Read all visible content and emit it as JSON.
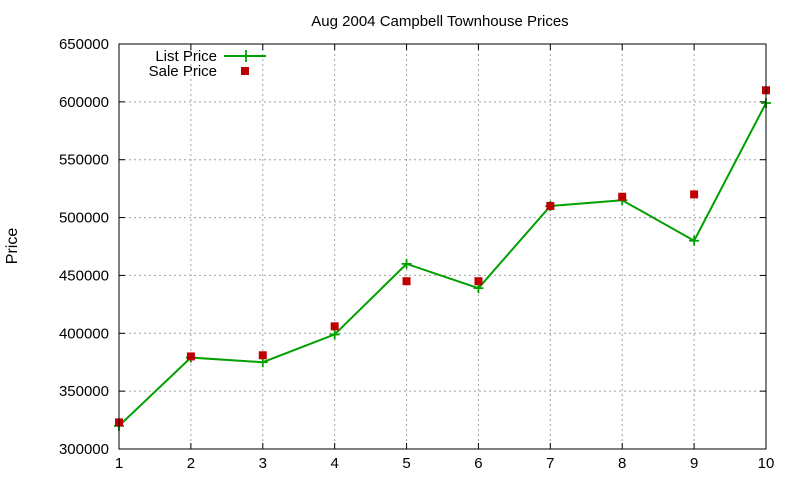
{
  "chart_data": {
    "type": "line",
    "title": "Aug 2004 Campbell Townhouse Prices",
    "xlabel": "",
    "ylabel": "Price",
    "x": [
      1,
      2,
      3,
      4,
      5,
      6,
      7,
      8,
      9,
      10
    ],
    "xlim": [
      1,
      10
    ],
    "ylim": [
      300000,
      650000
    ],
    "x_ticks": [
      1,
      2,
      3,
      4,
      5,
      6,
      7,
      8,
      9,
      10
    ],
    "y_ticks": [
      300000,
      350000,
      400000,
      450000,
      500000,
      550000,
      600000,
      650000
    ],
    "grid": true,
    "legend_position": "top-left",
    "series": [
      {
        "name": "List Price",
        "style": "lines+points",
        "marker": "plus",
        "color": "#00a000",
        "values": [
          320000,
          379000,
          375000,
          399000,
          460000,
          439000,
          510000,
          515000,
          480000,
          599000
        ]
      },
      {
        "name": "Sale Price",
        "style": "points",
        "marker": "square",
        "color": "#c00000",
        "values": [
          323000,
          380000,
          381000,
          406000,
          445000,
          445000,
          510000,
          518000,
          520000,
          610000
        ]
      }
    ]
  }
}
